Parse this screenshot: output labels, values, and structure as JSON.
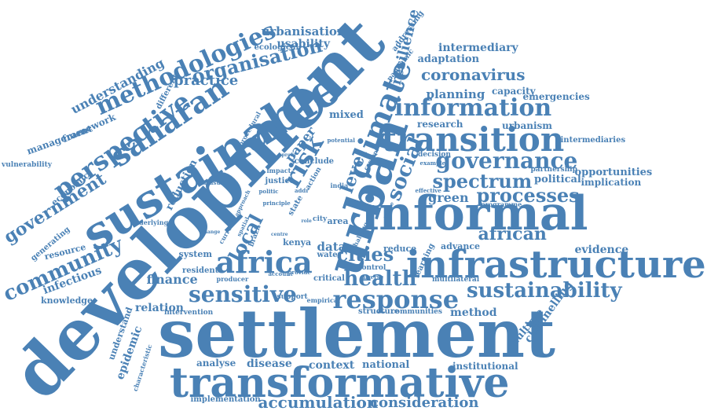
{
  "color": "#4a81b5",
  "words": [
    {
      "text": "settlement"
    },
    {
      "text": "development"
    },
    {
      "text": "sustainable"
    },
    {
      "text": "urban"
    },
    {
      "text": "informal"
    },
    {
      "text": "infrastructure"
    },
    {
      "text": "transformative"
    },
    {
      "text": "transition"
    },
    {
      "text": "information"
    },
    {
      "text": "governance"
    },
    {
      "text": "response"
    },
    {
      "text": "sustainability"
    },
    {
      "text": "climate"
    },
    {
      "text": "africa"
    },
    {
      "text": "health"
    },
    {
      "text": "cities"
    },
    {
      "text": "sensitive"
    },
    {
      "text": "perspective"
    },
    {
      "text": "saharan"
    },
    {
      "text": "methodologies"
    },
    {
      "text": "organisation"
    },
    {
      "text": "community"
    },
    {
      "text": "government"
    },
    {
      "text": "processes"
    },
    {
      "text": "spectrum"
    },
    {
      "text": "coronavirus"
    },
    {
      "text": "accumulation"
    },
    {
      "text": "consideration"
    },
    {
      "text": "risk"
    },
    {
      "text": "social"
    },
    {
      "text": "level"
    },
    {
      "text": "local"
    },
    {
      "text": "resilience"
    },
    {
      "text": "practice"
    },
    {
      "text": "understanding"
    },
    {
      "text": "urbanisation"
    },
    {
      "text": "usability"
    },
    {
      "text": "intermediary"
    },
    {
      "text": "adaptation"
    },
    {
      "text": "planning"
    },
    {
      "text": "capacity"
    },
    {
      "text": "emergencies"
    },
    {
      "text": "research"
    },
    {
      "text": "urbanism"
    },
    {
      "text": "intermediaries"
    },
    {
      "text": "opportunities"
    },
    {
      "text": "implication"
    },
    {
      "text": "political"
    },
    {
      "text": "partnership"
    },
    {
      "text": "green"
    },
    {
      "text": "african"
    },
    {
      "text": "evidence"
    },
    {
      "text": "advance"
    },
    {
      "text": "method"
    },
    {
      "text": "multiple"
    },
    {
      "text": "channelling"
    },
    {
      "text": "institutional"
    },
    {
      "text": "national"
    },
    {
      "text": "context"
    },
    {
      "text": "disease"
    },
    {
      "text": "analyse"
    },
    {
      "text": "implementation"
    },
    {
      "text": "epidemic"
    },
    {
      "text": "understand"
    },
    {
      "text": "relation"
    },
    {
      "text": "finance"
    },
    {
      "text": "resident"
    },
    {
      "text": "system"
    },
    {
      "text": "infectious"
    },
    {
      "text": "knowledge"
    },
    {
      "text": "resource"
    },
    {
      "text": "generating"
    },
    {
      "text": "economic"
    },
    {
      "text": "management"
    },
    {
      "text": "framework"
    },
    {
      "text": "vulnerability"
    },
    {
      "text": "reduction"
    },
    {
      "text": "mixed"
    },
    {
      "text": "paper"
    },
    {
      "text": "different"
    },
    {
      "text": "ecological"
    },
    {
      "text": "data"
    },
    {
      "text": "water"
    },
    {
      "text": "kenya"
    },
    {
      "text": "reduce"
    },
    {
      "text": "control"
    },
    {
      "text": "critical"
    },
    {
      "text": "structure"
    },
    {
      "text": "communities"
    },
    {
      "text": "multilateral"
    },
    {
      "text": "learning"
    },
    {
      "text": "conclude"
    },
    {
      "text": "justice"
    },
    {
      "text": "decision"
    },
    {
      "text": "addressing"
    },
    {
      "text": "pandemic"
    },
    {
      "text": "programme"
    },
    {
      "text": "effective"
    },
    {
      "text": "procedural"
    },
    {
      "text": "intervention"
    },
    {
      "text": "support"
    },
    {
      "text": "empirical"
    },
    {
      "text": "producer"
    },
    {
      "text": "underlying"
    },
    {
      "text": "measure"
    },
    {
      "text": "change"
    },
    {
      "text": "characteristic"
    },
    {
      "text": "impact"
    },
    {
      "text": "politic"
    },
    {
      "text": "action"
    },
    {
      "text": "india"
    },
    {
      "text": "brazil"
    },
    {
      "text": "state"
    },
    {
      "text": "city"
    },
    {
      "text": "area"
    },
    {
      "text": "potential"
    },
    {
      "text": "example"
    },
    {
      "text": "challenge"
    },
    {
      "text": "range"
    },
    {
      "text": "concept"
    },
    {
      "text": "diverse"
    },
    {
      "text": "account"
    },
    {
      "text": "provide"
    },
    {
      "text": "principle"
    },
    {
      "text": "current"
    },
    {
      "text": "spatial"
    },
    {
      "text": "approach"
    },
    {
      "text": "role"
    },
    {
      "text": "addr"
    },
    {
      "text": "profit"
    },
    {
      "text": "centre"
    }
  ]
}
